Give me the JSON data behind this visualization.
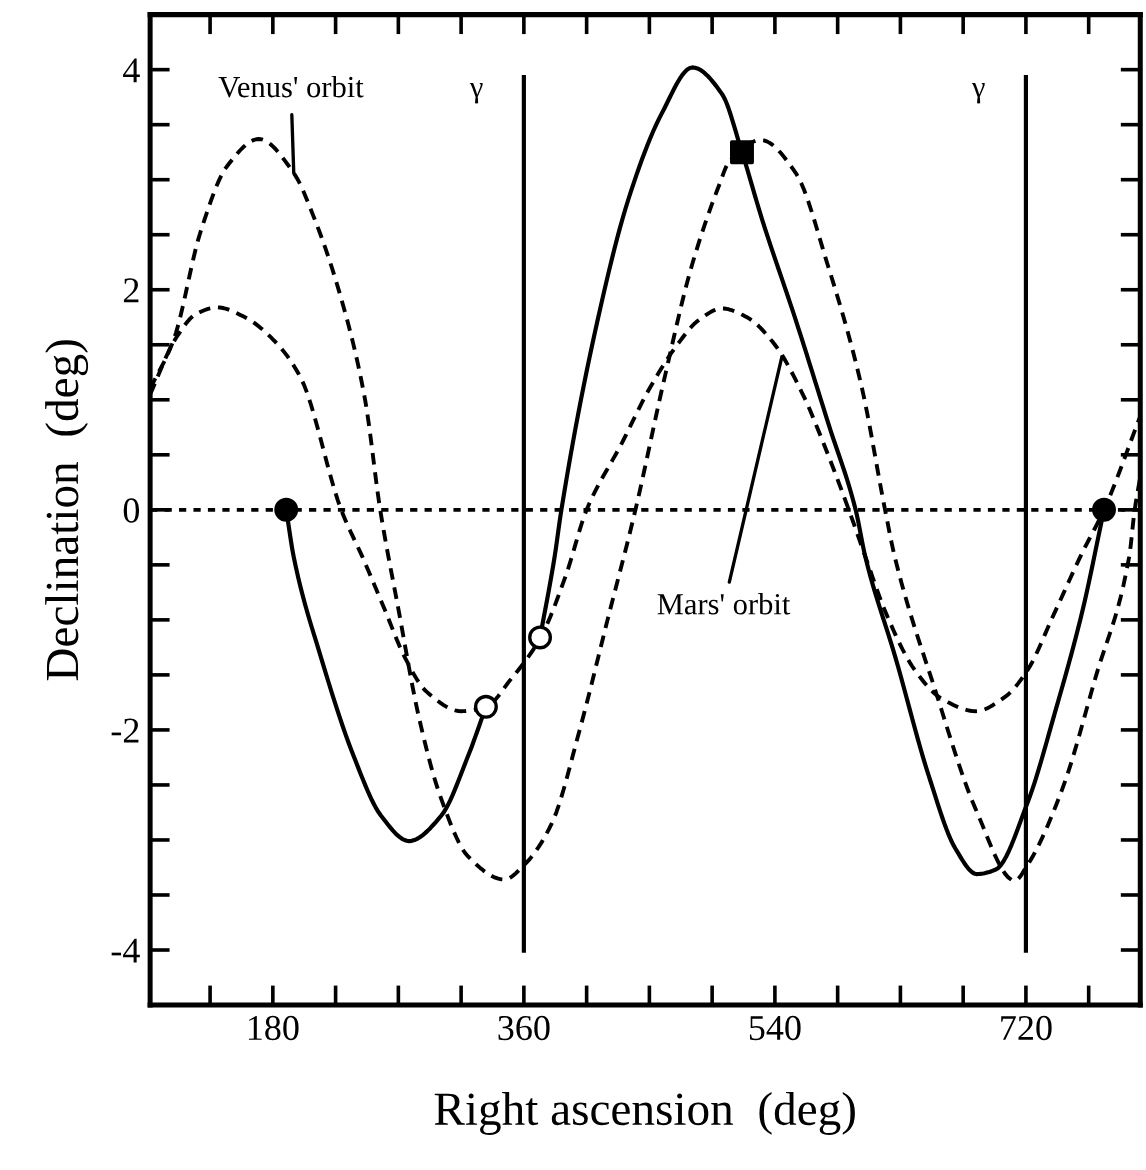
{
  "chart_data": {
    "type": "line",
    "xlabel": "Right ascension  (deg)",
    "ylabel": "Declination  (deg)",
    "xlim": [
      92,
      802
    ],
    "ylim": [
      -4.5,
      4.5
    ],
    "xticks": [
      {
        "value": 135,
        "label": null
      },
      180,
      {
        "value": 225,
        "label": null
      },
      {
        "value": 270,
        "label": null
      },
      {
        "value": 315,
        "label": null
      },
      360,
      {
        "value": 405,
        "label": null
      },
      {
        "value": 450,
        "label": null
      },
      {
        "value": 495,
        "label": null
      },
      540,
      {
        "value": 585,
        "label": null
      },
      {
        "value": 630,
        "label": null
      },
      {
        "value": 675,
        "label": null
      },
      720,
      {
        "value": 765,
        "label": null
      }
    ],
    "yticks": [
      -4,
      {
        "value": -3.5,
        "label": null
      },
      {
        "value": -3,
        "label": null
      },
      {
        "value": -2.5,
        "label": null
      },
      -2,
      {
        "value": -1.5,
        "label": null
      },
      {
        "value": -1,
        "label": null
      },
      {
        "value": -0.5,
        "label": null
      },
      0,
      {
        "value": 0.5,
        "label": null
      },
      {
        "value": 1,
        "label": null
      },
      {
        "value": 1.5,
        "label": null
      },
      2,
      {
        "value": 2.5,
        "label": null
      },
      {
        "value": 3,
        "label": null
      },
      {
        "value": 3.5,
        "label": null
      },
      4
    ],
    "grid": false,
    "series": [
      {
        "line_style": "dashed",
        "marker": "none",
        "color": "#000000",
        "x": [
          92,
          109,
          128,
          147,
          170,
          195,
          210,
          229,
          246,
          257,
          270,
          285,
          300,
          320,
          346,
          360,
          380,
          400,
          420,
          440,
          460,
          480,
          500,
          507,
          530,
          555,
          578,
          602,
          619,
          626,
          655,
          684,
          712,
          721,
          746,
          770,
          794,
          798,
          802
        ],
        "values": [
          1.1,
          1.55,
          2.52,
          3.12,
          3.37,
          3.06,
          2.64,
          1.92,
          1.01,
          0,
          -0.9,
          -1.9,
          -2.6,
          -3.15,
          -3.36,
          -3.23,
          -2.85,
          -2.0,
          -1.0,
          0,
          1.15,
          2.2,
          2.95,
          3.16,
          3.36,
          3.06,
          2.22,
          1.13,
          0,
          -0.43,
          -1.64,
          -2.72,
          -3.37,
          -3.23,
          -2.54,
          -1.52,
          -0.43,
          0,
          0.3
        ]
      },
      {
        "line_style": "dashed",
        "marker": "none",
        "color": "#000000",
        "x": [
          92,
          110,
          125,
          140,
          160,
          180,
          200,
          229,
          245,
          260,
          275,
          290,
          315,
          333,
          350,
          372,
          390,
          405,
          430,
          450,
          470,
          485,
          502,
          520,
          540,
          560,
          575,
          593,
          605,
          620,
          640,
          660,
          684,
          705,
          721,
          740,
          760,
          776,
          802
        ],
        "values": [
          1.05,
          1.55,
          1.78,
          1.84,
          1.75,
          1.55,
          1.2,
          0,
          -0.45,
          -0.9,
          -1.35,
          -1.65,
          -1.83,
          -1.79,
          -1.55,
          -1.16,
          -0.6,
          0,
          0.6,
          1.1,
          1.5,
          1.72,
          1.83,
          1.75,
          1.5,
          1.05,
          0.6,
          0,
          -0.43,
          -0.95,
          -1.45,
          -1.72,
          -1.83,
          -1.7,
          -1.46,
          -0.95,
          -0.4,
          0,
          0.85
        ]
      },
      {
        "line_style": "solid",
        "marker": "none",
        "color": "#000000",
        "x": [
          189.6,
          195,
          214.5,
          238,
          257.6,
          277.7,
          300.7,
          319.9,
          332.8,
          352,
          371.6,
          382,
          386.9,
          410.9,
          434.9,
          458.8,
          480.9,
          502,
          516.4,
          530.8,
          554.8,
          578.7,
          597.9,
          604.9,
          626.4,
          650.4,
          669.5,
          684.8,
          698.2,
          721.2,
          741.3,
          760.5,
          776
        ],
        "values": [
          0,
          -0.43,
          -1.34,
          -2.24,
          -2.78,
          -3.01,
          -2.78,
          -2.24,
          -1.79,
          null,
          -1.16,
          -0.43,
          0,
          1.61,
          2.82,
          3.6,
          4.02,
          3.78,
          3.25,
          2.64,
          1.73,
          0.77,
          0,
          -0.43,
          -1.34,
          -2.42,
          -3.08,
          -3.31,
          -3.27,
          -2.66,
          -1.82,
          -0.92,
          0
        ]
      },
      {
        "type": "scatter",
        "marker": "circle",
        "color": "#000000",
        "x": [
          189.6,
          776
        ],
        "values": [
          0,
          0
        ]
      },
      {
        "type": "scatter",
        "marker": "circle",
        "color": "#ffffff",
        "x": [
          332.8,
          371.6
        ],
        "values": [
          -1.79,
          -1.16
        ]
      },
      {
        "type": "scatter",
        "marker": "square",
        "color": "#000000",
        "x": [
          516.4
        ],
        "values": [
          3.25
        ]
      }
    ],
    "ref_lines": [
      {
        "axis": "y",
        "value": 0,
        "line_style": "dotted",
        "color": "#000000"
      },
      {
        "axis": "x",
        "value": 360,
        "label": "γ",
        "line_style": "solid",
        "color": "#000000"
      },
      {
        "axis": "x",
        "value": 720,
        "label": "γ",
        "line_style": "solid",
        "color": "#000000"
      }
    ],
    "annotations": [
      {
        "text": "Venus' orbit",
        "x": 195,
        "y": 3.06
      },
      {
        "text": "Mars' orbit",
        "x": 545,
        "y": 1.39
      }
    ]
  }
}
